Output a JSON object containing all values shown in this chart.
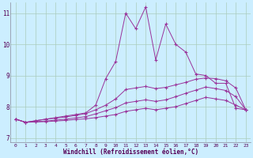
{
  "title": "",
  "xlabel": "Windchill (Refroidissement éolien,°C)",
  "ylabel": "",
  "bg_color": "#cceeff",
  "line_color": "#993399",
  "grid_color": "#aaccbb",
  "xlim": [
    -0.5,
    23.5
  ],
  "ylim": [
    6.85,
    11.35
  ],
  "yticks": [
    7,
    8,
    9,
    10,
    11
  ],
  "xticks": [
    0,
    1,
    2,
    3,
    4,
    5,
    6,
    7,
    8,
    9,
    10,
    11,
    12,
    13,
    14,
    15,
    16,
    17,
    18,
    19,
    20,
    21,
    22,
    23
  ],
  "series": [
    {
      "x": [
        0,
        1,
        2,
        3,
        4,
        5,
        6,
        7,
        8,
        9,
        10,
        11,
        12,
        13,
        14,
        15,
        16,
        17,
        18,
        19,
        20,
        21,
        22,
        23
      ],
      "y": [
        7.6,
        7.5,
        7.55,
        7.6,
        7.65,
        7.7,
        7.75,
        7.8,
        8.05,
        8.9,
        9.45,
        11.0,
        10.5,
        11.2,
        9.5,
        10.65,
        10.0,
        9.75,
        9.05,
        9.0,
        8.75,
        8.75,
        7.95,
        7.9
      ]
    },
    {
      "x": [
        0,
        1,
        2,
        3,
        4,
        5,
        6,
        7,
        8,
        9,
        10,
        11,
        12,
        13,
        14,
        15,
        16,
        17,
        18,
        19,
        20,
        21,
        22,
        23
      ],
      "y": [
        7.6,
        7.5,
        7.55,
        7.6,
        7.63,
        7.67,
        7.72,
        7.78,
        7.9,
        8.05,
        8.25,
        8.55,
        8.6,
        8.65,
        8.58,
        8.62,
        8.7,
        8.78,
        8.88,
        8.92,
        8.9,
        8.83,
        8.6,
        7.9
      ]
    },
    {
      "x": [
        0,
        1,
        2,
        3,
        4,
        5,
        6,
        7,
        8,
        9,
        10,
        11,
        12,
        13,
        14,
        15,
        16,
        17,
        18,
        19,
        20,
        21,
        22,
        23
      ],
      "y": [
        7.6,
        7.5,
        7.52,
        7.54,
        7.57,
        7.6,
        7.64,
        7.68,
        7.77,
        7.87,
        7.97,
        8.12,
        8.17,
        8.22,
        8.17,
        8.22,
        8.32,
        8.43,
        8.53,
        8.63,
        8.58,
        8.52,
        8.32,
        7.9
      ]
    },
    {
      "x": [
        0,
        1,
        2,
        3,
        4,
        5,
        6,
        7,
        8,
        9,
        10,
        11,
        12,
        13,
        14,
        15,
        16,
        17,
        18,
        19,
        20,
        21,
        22,
        23
      ],
      "y": [
        7.6,
        7.5,
        7.51,
        7.52,
        7.54,
        7.56,
        7.59,
        7.61,
        7.65,
        7.7,
        7.75,
        7.85,
        7.9,
        7.95,
        7.9,
        7.95,
        8.0,
        8.1,
        8.2,
        8.3,
        8.25,
        8.2,
        8.05,
        7.9
      ]
    }
  ]
}
